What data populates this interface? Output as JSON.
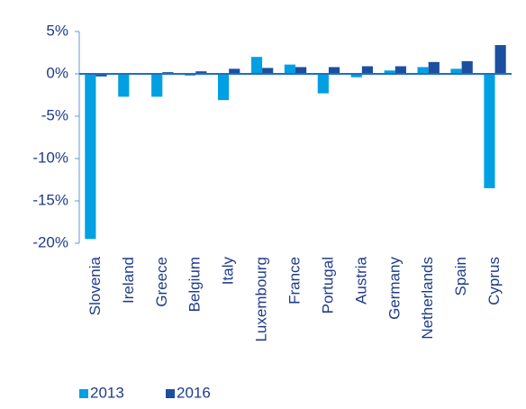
{
  "chart_data": {
    "type": "bar",
    "categories": [
      "Slovenia",
      "Ireland",
      "Greece",
      "Belgium",
      "Italy",
      "Luxembourg",
      "France",
      "Portugal",
      "Austria",
      "Germany",
      "Netherlands",
      "Spain",
      "Cyprus"
    ],
    "series": [
      {
        "name": "2013",
        "color": "#00a0e3",
        "values": [
          -19.5,
          -2.7,
          -2.7,
          -0.2,
          -3.1,
          2.0,
          1.1,
          -2.3,
          -0.4,
          0.4,
          0.8,
          0.6,
          -13.5
        ]
      },
      {
        "name": "2016",
        "color": "#1c4f9f",
        "values": [
          -0.3,
          -0.1,
          0.2,
          0.3,
          0.6,
          0.7,
          0.8,
          0.8,
          0.9,
          0.9,
          1.4,
          1.5,
          3.4
        ]
      }
    ],
    "ylim": [
      -20,
      5
    ],
    "yticks": [
      {
        "value": 5,
        "label": "5%"
      },
      {
        "value": 0,
        "label": "0%"
      },
      {
        "value": -5,
        "label": "-5%"
      },
      {
        "value": -10,
        "label": "-10%"
      },
      {
        "value": -15,
        "label": "-15%"
      },
      {
        "value": -20,
        "label": "-20%"
      }
    ],
    "grid": false,
    "legend": "bottom-left"
  }
}
